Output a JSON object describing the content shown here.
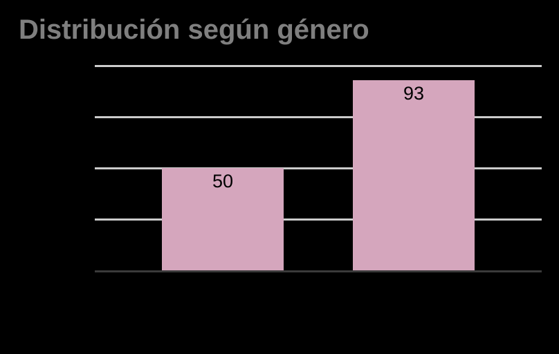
{
  "chart": {
    "background_color": "#000000",
    "title_color": "#7f7f7f",
    "bar_color": "#d5a6bd",
    "gridline_color": "#cccccc",
    "axis_line_color": "#3b3b3b",
    "value_label_color": "#000000"
  },
  "chart_data": {
    "type": "bar",
    "title": "Distribución según género",
    "categories": [
      "",
      ""
    ],
    "values": [
      50,
      93
    ],
    "data_labels": [
      "50",
      "93"
    ],
    "xlabel": "",
    "ylabel": "",
    "ylim": [
      0,
      100
    ],
    "gridline_interval": 25,
    "gridline_values": [
      25,
      50,
      75,
      100
    ],
    "grid": true,
    "legend": false,
    "axis_tick_labels_visible": false
  }
}
